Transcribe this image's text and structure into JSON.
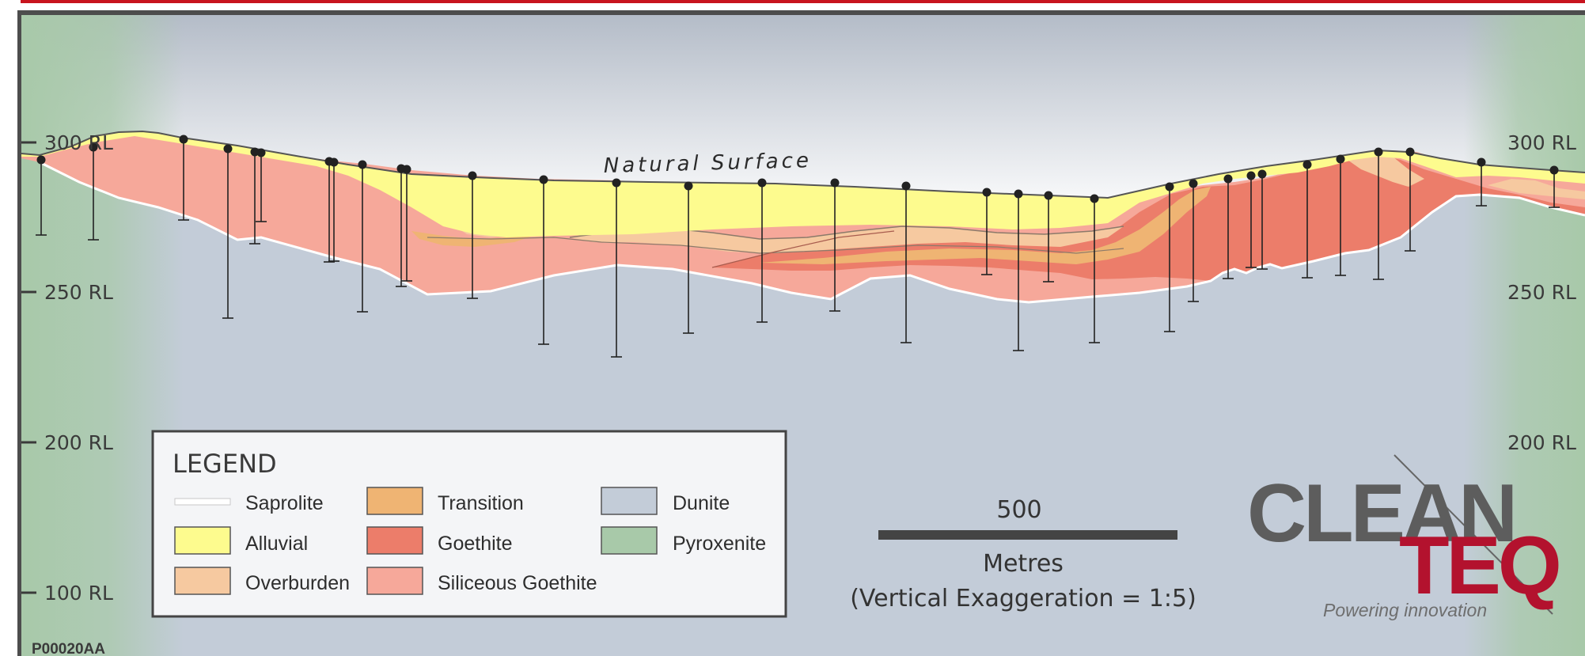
{
  "rl_labels": {
    "left": [
      "300 RL",
      "250 RL",
      "200 RL",
      "100 RL"
    ],
    "right": [
      "300 RL",
      "250 RL",
      "200 RL"
    ]
  },
  "surface_label": "Natural Surface",
  "legend": {
    "title": "LEGEND",
    "items": [
      {
        "label": "Saprolite",
        "color": "#ffffff"
      },
      {
        "label": "Alluvial",
        "color": "#fdfb8e"
      },
      {
        "label": "Overburden",
        "color": "#f6c9a0"
      },
      {
        "label": "Transition",
        "color": "#efb473"
      },
      {
        "label": "Goethite",
        "color": "#ec7d6a"
      },
      {
        "label": "Siliceous Goethite",
        "color": "#f6a89a"
      },
      {
        "label": "Dunite",
        "color": "#c3ccd8"
      },
      {
        "label": "Pyroxenite",
        "color": "#a8c9a9"
      }
    ]
  },
  "scale_bar": {
    "value": "500",
    "units": "Metres",
    "note": "(Vertical Exaggeration = 1:5)"
  },
  "logo": {
    "word1": "CLEAN",
    "word2": "TEQ",
    "tagline": "Powering innovation",
    "colors": {
      "grey": "#5d5d5d",
      "red": "#b3122e"
    }
  },
  "reference_code": "P00020AA",
  "colors": {
    "frame_red": "#c8141e",
    "frame_grey": "#4d4d4d",
    "sky_top": "#b4bcc8",
    "sky_bottom": "#ffffff",
    "drill_hole": "#222222"
  }
}
